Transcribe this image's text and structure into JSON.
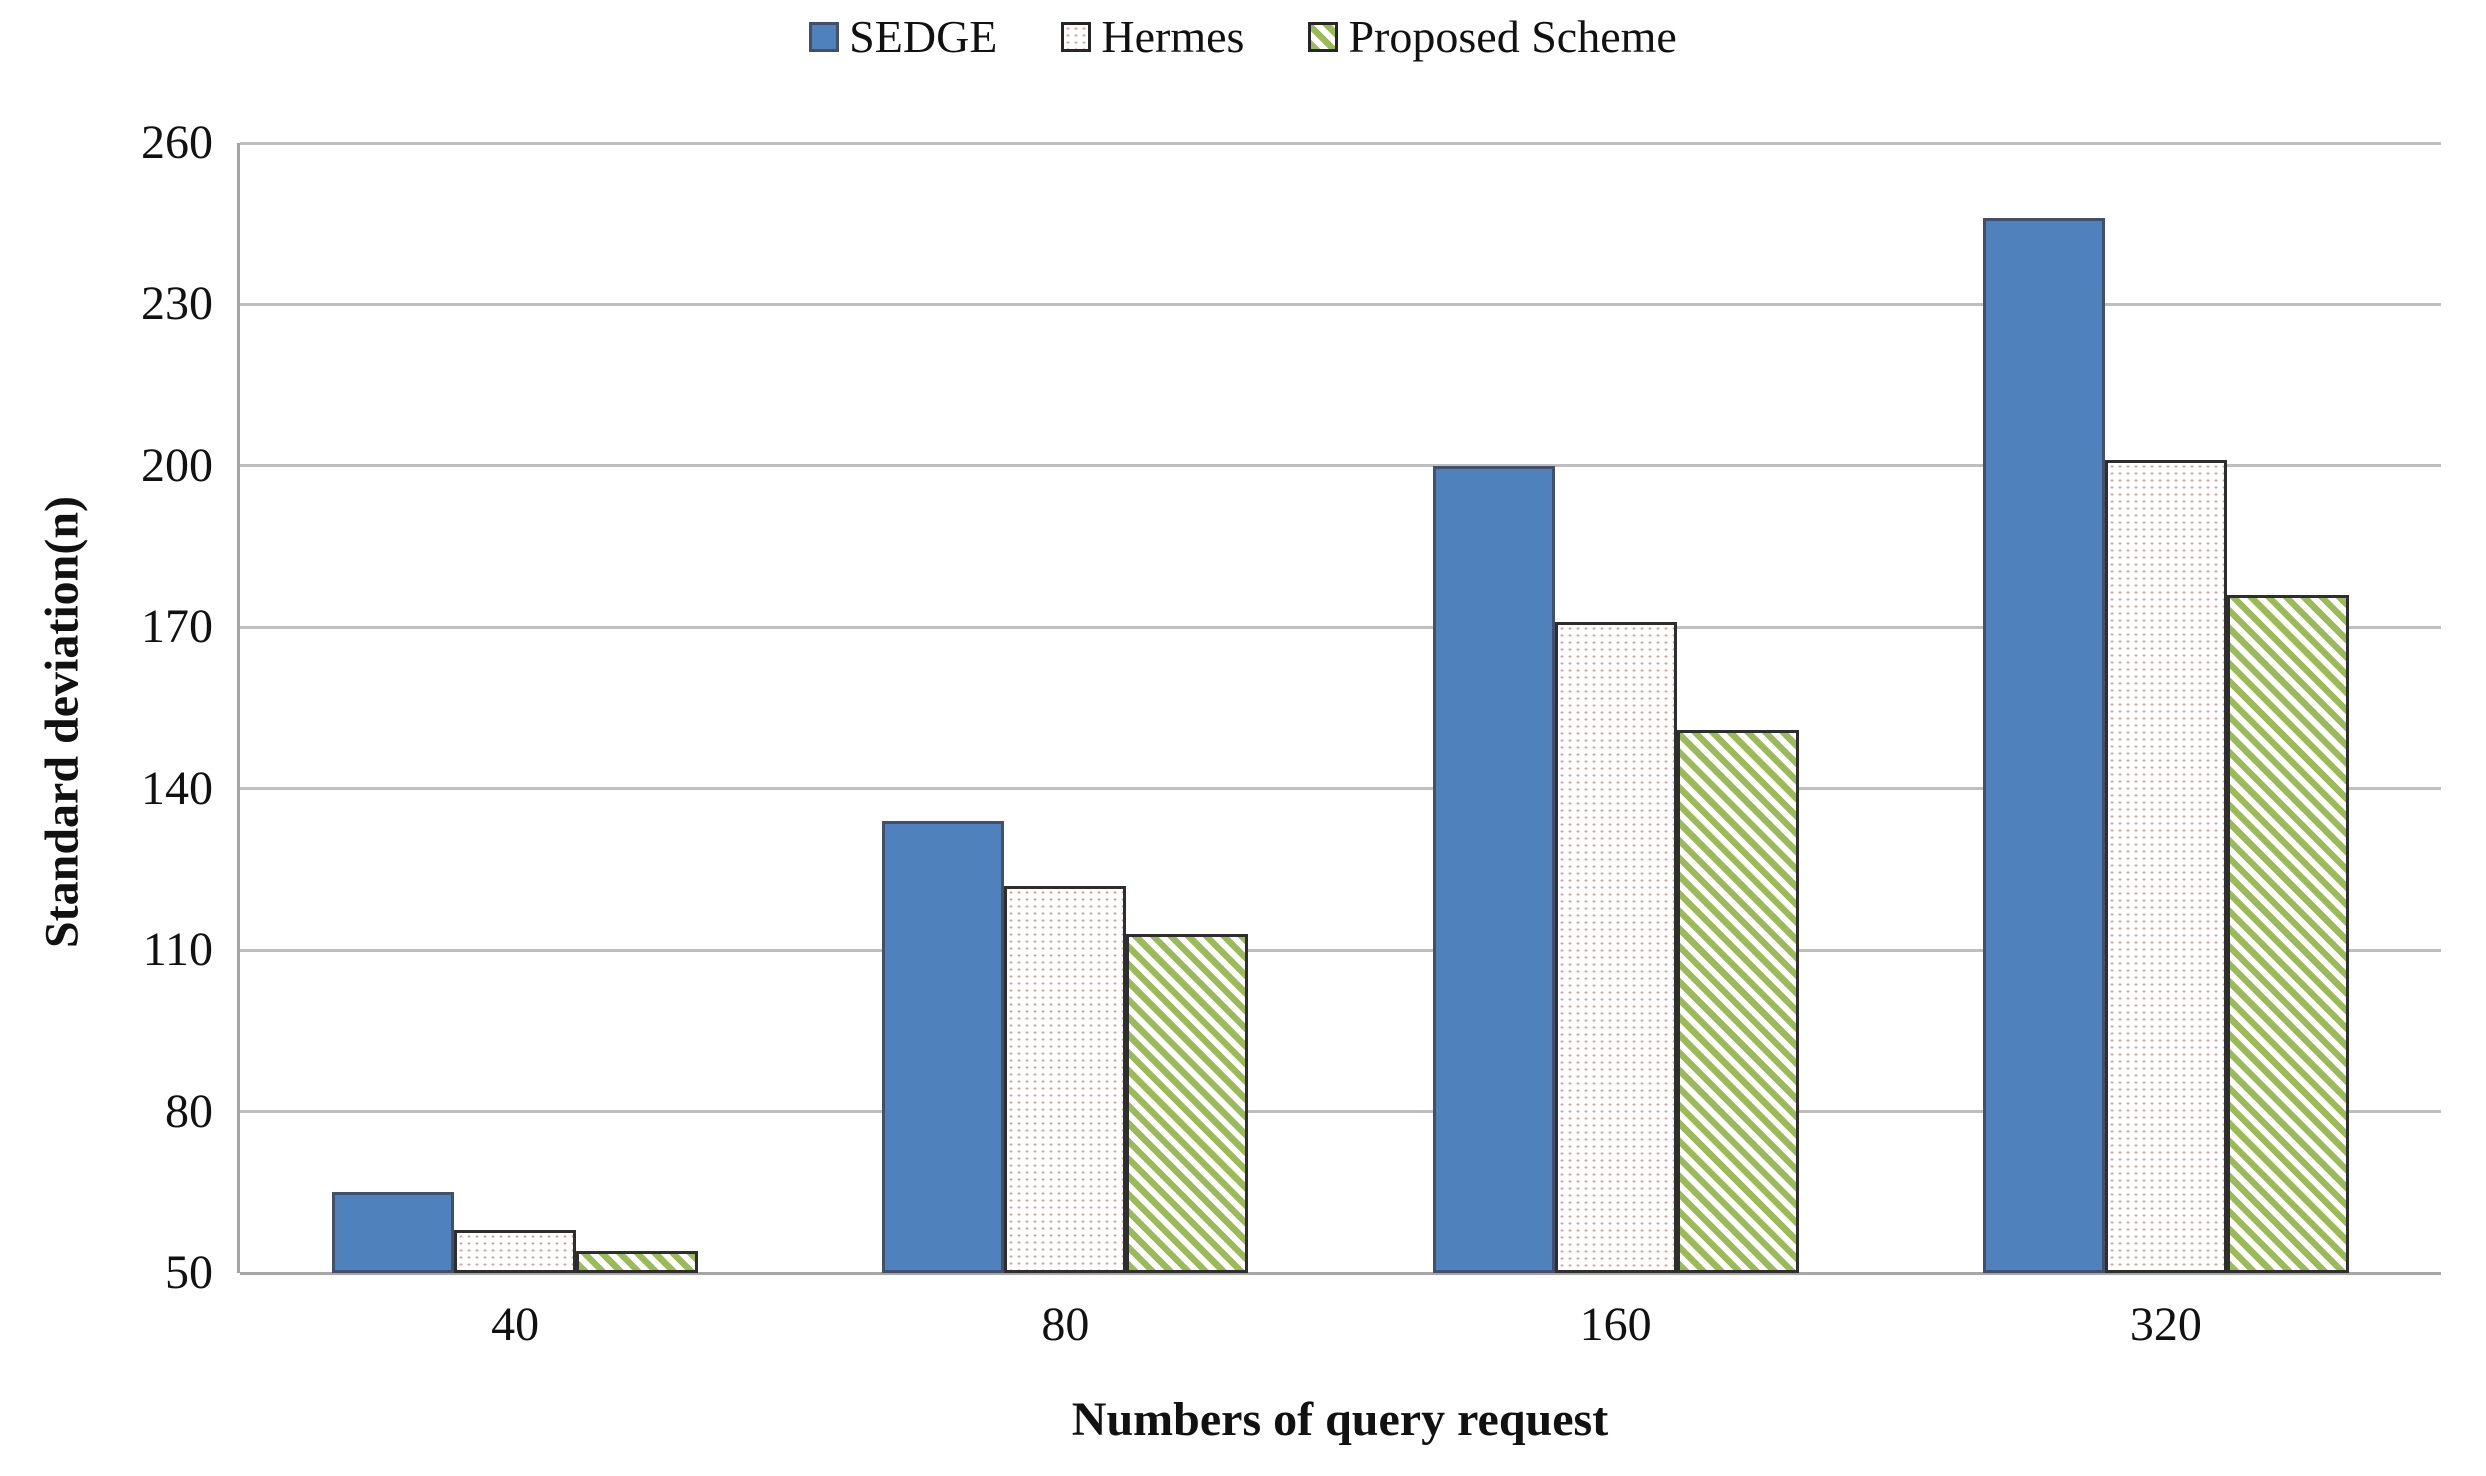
{
  "legend": {
    "items": [
      {
        "label": "SEDGE",
        "swatch": "solid-blue"
      },
      {
        "label": "Hermes",
        "swatch": "dots"
      },
      {
        "label": "Proposed Scheme",
        "swatch": "diagonal-stripes"
      }
    ],
    "position": "top-center"
  },
  "y_axis": {
    "title": "Standard deviation(n)",
    "ticks": [
      260,
      230,
      200,
      170,
      140,
      110,
      80,
      50
    ]
  },
  "x_axis": {
    "title": "Numbers of query request",
    "categories": [
      "40",
      "80",
      "160",
      "320"
    ]
  },
  "colors": {
    "sedge_fill": "#4f81bd",
    "hermes_dot": "#dd9f9b",
    "proposed_stripe": "#9bbb59",
    "gridline": "#bfbfbf",
    "axis_line": "#a6a6a6",
    "bar_border": "#2e2e2e",
    "text": "#111111"
  },
  "chart_data": {
    "type": "bar",
    "title": "",
    "categories": [
      "40",
      "80",
      "160",
      "320"
    ],
    "series": [
      {
        "name": "SEDGE",
        "pattern": "solid-blue",
        "values": [
          65,
          134,
          200,
          246
        ]
      },
      {
        "name": "Hermes",
        "pattern": "dots",
        "values": [
          58,
          122,
          171,
          201
        ]
      },
      {
        "name": "Proposed Scheme",
        "pattern": "diagonal-stripes",
        "values": [
          54,
          113,
          151,
          176
        ]
      }
    ],
    "xlabel": "Numbers of query request",
    "ylabel": "Standard deviation(n)",
    "ylim": [
      50,
      260
    ],
    "ytick_step": 30,
    "grid": true,
    "legend_position": "top"
  }
}
